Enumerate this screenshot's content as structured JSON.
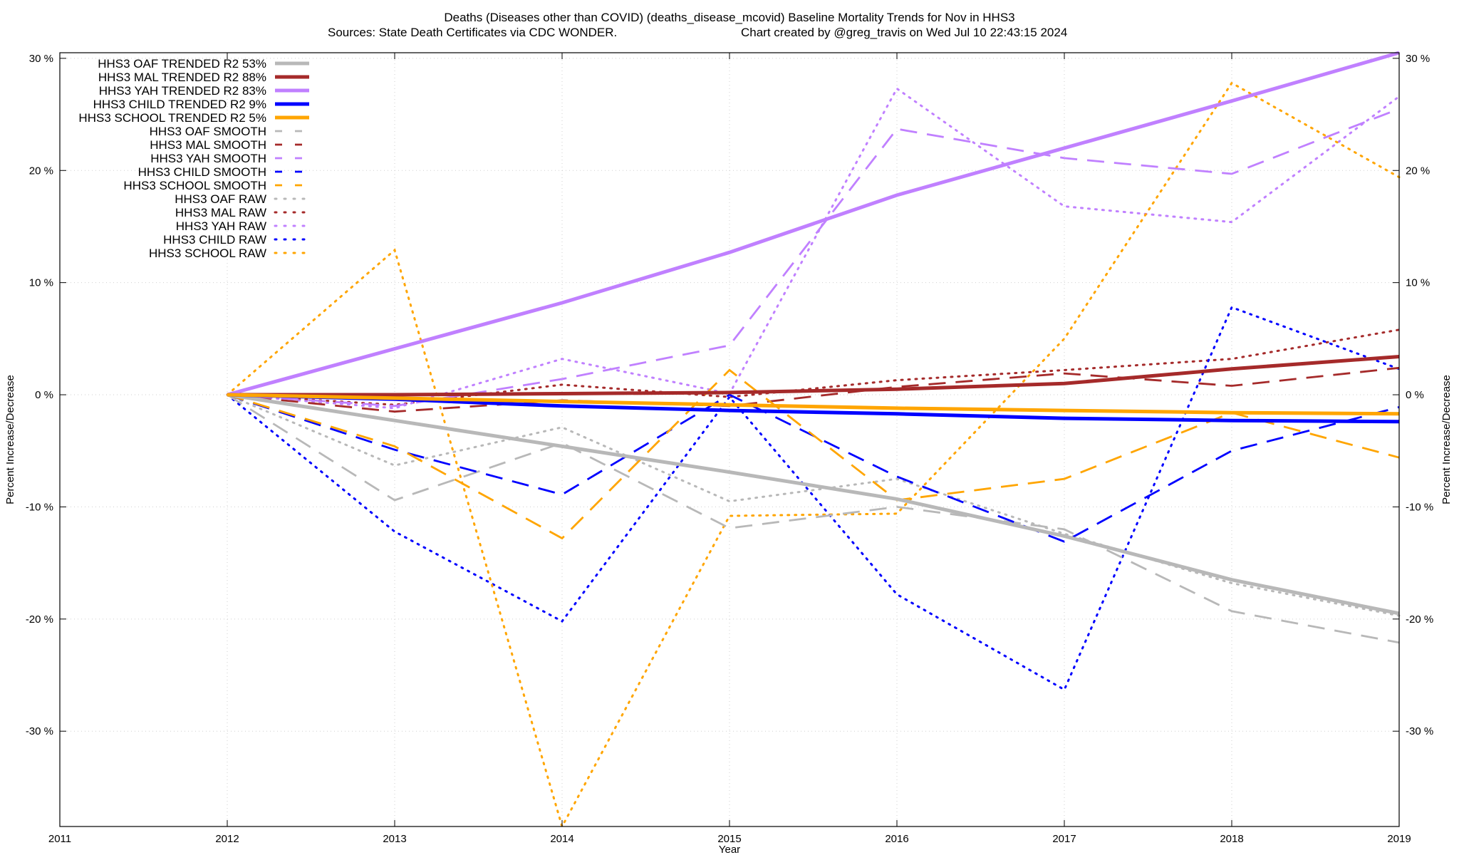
{
  "chart_data": {
    "type": "line",
    "title_line1": "Deaths (Diseases other than COVID) (deaths_disease_mcovid)  Baseline Mortality Trends for Nov in HHS3",
    "title_line2_left": "Sources: State Death Certificates via CDC WONDER.",
    "title_line2_right": "Chart created by @greg_travis on Wed Jul 10 22:43:15 2024",
    "xlabel": "Year",
    "ylabel_left": "Percent Increase/Decrease",
    "ylabel_right": "Percent Increase/Decrease",
    "xlim": [
      2011,
      2019
    ],
    "ylim": [
      -38.5,
      30.5
    ],
    "x_ticks": [
      2011,
      2012,
      2013,
      2014,
      2015,
      2016,
      2017,
      2018,
      2019
    ],
    "x_tick_labels": [
      "2011",
      "2012",
      "2013",
      "2014",
      "2015",
      "2016",
      "2017",
      "2018",
      "2019"
    ],
    "y_ticks": [
      30,
      20,
      10,
      0,
      -10,
      -20,
      -30
    ],
    "y_tick_labels": [
      "30 %",
      "20 %",
      "10 %",
      "0 %",
      "-10 %",
      "-20 %",
      "-30 %"
    ],
    "grid": true,
    "legend_position": "top-left",
    "x": [
      2012,
      2013,
      2014,
      2015,
      2016,
      2017,
      2018,
      2019
    ],
    "series": [
      {
        "name": "HHS3 OAF TRENDED R2  53%",
        "style": "solid",
        "color": "#b8b8b8",
        "values": [
          0,
          -2.3,
          -4.6,
          -6.9,
          -9.3,
          -12.6,
          -16.5,
          -19.5
        ]
      },
      {
        "name": "HHS3 MAL TRENDED R2  88%",
        "style": "solid",
        "color": "#a52a2a",
        "values": [
          0,
          0,
          0.1,
          0.2,
          0.5,
          1.0,
          2.3,
          3.4
        ]
      },
      {
        "name": "HHS3 YAH TRENDED R2  83%",
        "style": "solid",
        "color": "#c080ff",
        "values": [
          0,
          4.1,
          8.2,
          12.7,
          17.8,
          22.0,
          26.2,
          30.5
        ]
      },
      {
        "name": "HHS3 CHILD TRENDED R2   9%",
        "style": "solid",
        "color": "#0000ff",
        "values": [
          0,
          -0.4,
          -1.0,
          -1.4,
          -1.7,
          -2.1,
          -2.3,
          -2.4
        ]
      },
      {
        "name": "HHS3 SCHOOL TRENDED R2   5%",
        "style": "solid",
        "color": "#ffa500",
        "values": [
          0,
          -0.3,
          -0.6,
          -0.9,
          -1.2,
          -1.4,
          -1.6,
          -1.7
        ]
      },
      {
        "name": "HHS3 OAF SMOOTH",
        "style": "dashed",
        "color": "#b8b8b8",
        "values": [
          0,
          -9.4,
          -4.3,
          -11.9,
          -10.0,
          -12.0,
          -19.3,
          -22.1
        ]
      },
      {
        "name": "HHS3 MAL SMOOTH",
        "style": "dashed",
        "color": "#a52a2a",
        "values": [
          0,
          -1.5,
          -0.5,
          -1.0,
          0.7,
          1.9,
          0.8,
          2.4
        ]
      },
      {
        "name": "HHS3 YAH SMOOTH",
        "style": "dashed",
        "color": "#c080ff",
        "values": [
          0,
          -1.0,
          1.4,
          4.4,
          23.7,
          21.1,
          19.7,
          25.5
        ]
      },
      {
        "name": "HHS3 CHILD SMOOTH",
        "style": "dashed",
        "color": "#0000ff",
        "values": [
          0,
          -4.9,
          -8.9,
          0.0,
          -7.3,
          -13.1,
          -5.0,
          -1.1
        ]
      },
      {
        "name": "HHS3 SCHOOL SMOOTH",
        "style": "dashed",
        "color": "#ffa500",
        "values": [
          0,
          -4.6,
          -12.8,
          2.2,
          -9.4,
          -7.5,
          -1.6,
          -5.6
        ]
      },
      {
        "name": "HHS3 OAF RAW",
        "style": "dotted",
        "color": "#b8b8b8",
        "values": [
          0,
          -6.3,
          -2.9,
          -9.5,
          -7.5,
          -12.4,
          -16.8,
          -19.7
        ]
      },
      {
        "name": "HHS3 MAL RAW",
        "style": "dotted",
        "color": "#a52a2a",
        "values": [
          0,
          -0.9,
          0.9,
          -0.2,
          1.3,
          2.2,
          3.2,
          5.8
        ]
      },
      {
        "name": "HHS3 YAH RAW",
        "style": "dotted",
        "color": "#c080ff",
        "values": [
          0,
          -1.2,
          3.2,
          0.1,
          27.3,
          16.8,
          15.4,
          26.6
        ]
      },
      {
        "name": "HHS3 CHILD RAW",
        "style": "dotted",
        "color": "#0000ff",
        "values": [
          0,
          -12.2,
          -20.2,
          -0.2,
          -17.8,
          -26.3,
          7.8,
          2.3
        ]
      },
      {
        "name": "HHS3 SCHOOL RAW",
        "style": "dotted",
        "color": "#ffa500",
        "values": [
          0,
          12.9,
          -38.5,
          -10.8,
          -10.6,
          5.0,
          27.8,
          19.4
        ]
      }
    ]
  }
}
